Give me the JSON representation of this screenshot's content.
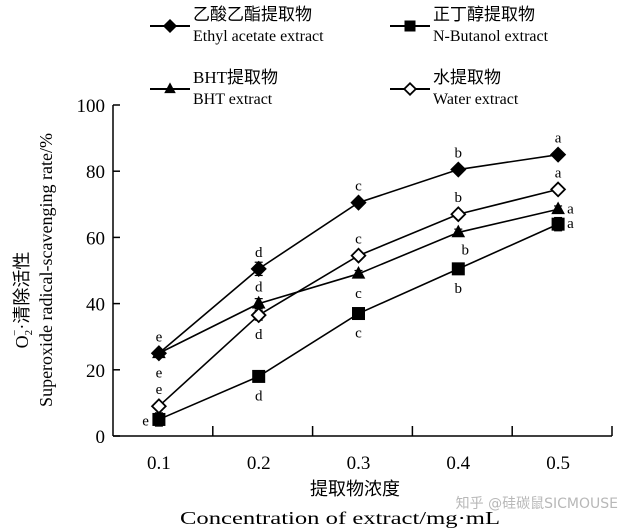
{
  "chart_data": {
    "type": "line",
    "title": "",
    "xlabel_cn": "提取物浓度",
    "xlabel": "Concentration of extract/mg·mL",
    "ylabel_cn": "O2⁻·清除活性",
    "ylabel": "Superoxide radical-scavenging rate/%",
    "categories": [
      "0.1",
      "0.2",
      "0.3",
      "0.4",
      "0.5"
    ],
    "ylim": [
      0,
      100
    ],
    "yticks": [
      0,
      20,
      40,
      60,
      80,
      100
    ],
    "grid": false,
    "legend_position": "top",
    "series": [
      {
        "name_cn": "乙酸乙酯提取物",
        "name": "Ethyl acetate extract",
        "marker": "diamond-filled",
        "values": [
          25,
          50.5,
          70.5,
          80.5,
          85
        ],
        "errors": [
          0,
          2,
          1,
          0.5,
          0.5
        ],
        "sig": [
          "e",
          "d",
          "c",
          "b",
          "a"
        ],
        "sig_pos": [
          "above",
          "above",
          "above",
          "above",
          "above"
        ]
      },
      {
        "name_cn": "正丁醇提取物",
        "name": "N-Butanol extract",
        "marker": "square-filled",
        "values": [
          5,
          18,
          37,
          50.5,
          64
        ],
        "errors": [
          2,
          1,
          1.5,
          1,
          2
        ],
        "sig": [
          "e",
          "d",
          "c",
          "b",
          "a"
        ],
        "sig_pos": [
          "left",
          "below",
          "below",
          "below",
          "right"
        ]
      },
      {
        "name_cn": "BHT提取物",
        "name": "BHT extract",
        "marker": "triangle-filled",
        "values": [
          25,
          40,
          49,
          61.5,
          68.5
        ],
        "errors": [
          1,
          1.5,
          1,
          1,
          1
        ],
        "sig": [
          "e",
          "d",
          "c",
          "b",
          "a"
        ],
        "sig_pos": [
          "below",
          "above",
          "below",
          "below-right",
          "right"
        ]
      },
      {
        "name_cn": "水提取物",
        "name": "Water extract",
        "marker": "diamond-open",
        "values": [
          9,
          36.5,
          54.5,
          67,
          74.5
        ],
        "errors": [
          1,
          1.5,
          1,
          1,
          1
        ],
        "sig": [
          "e",
          "d",
          "c",
          "b",
          "a"
        ],
        "sig_pos": [
          "above",
          "below",
          "above",
          "above",
          "above"
        ]
      }
    ]
  },
  "watermark": "知乎 @硅碳鼠SICMOUSE"
}
